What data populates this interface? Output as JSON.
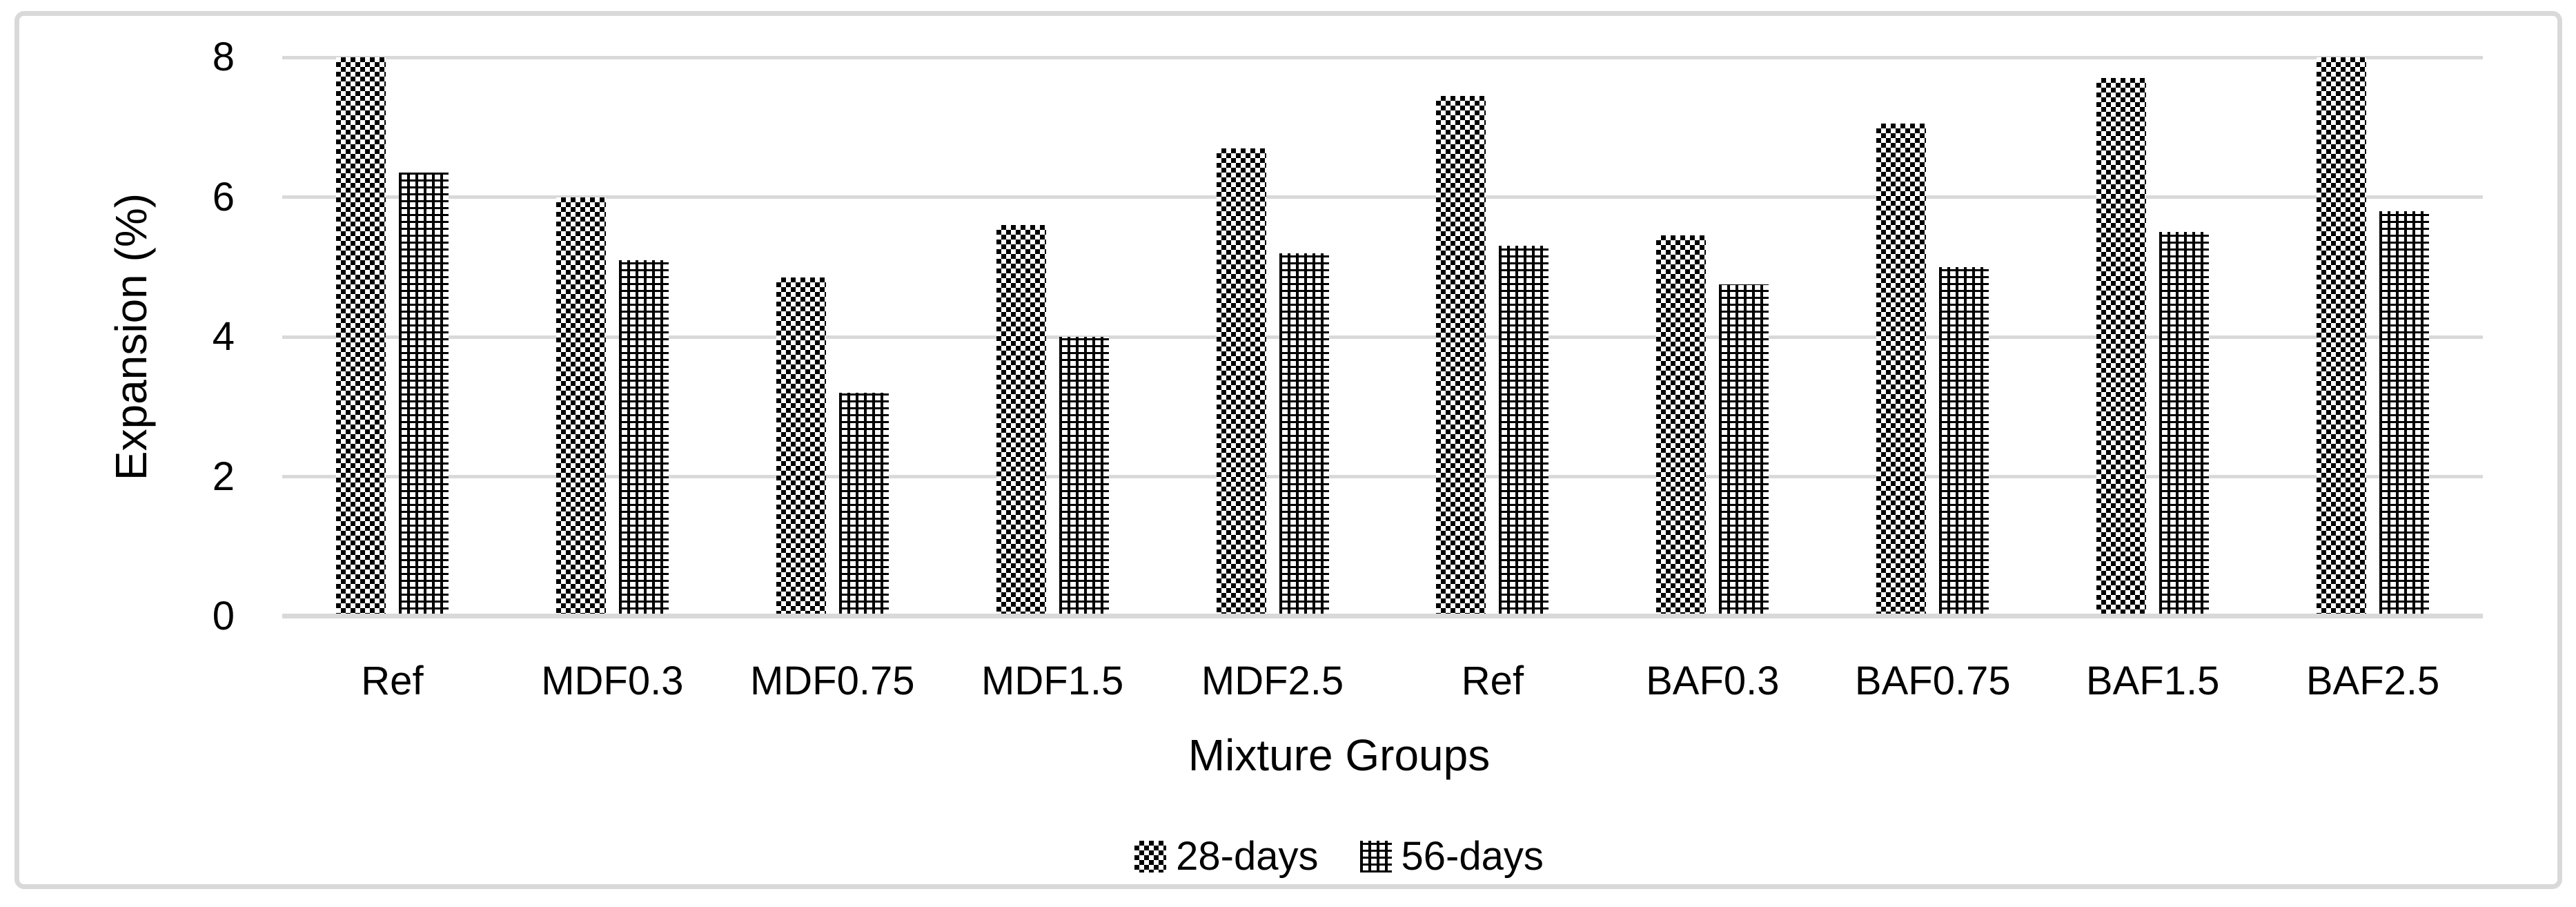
{
  "chart_data": {
    "type": "bar",
    "categories": [
      "Ref",
      "MDF0.3",
      "MDF0.75",
      "MDF1.5",
      "MDF2.5",
      "Ref",
      "BAF0.3",
      "BAF0.75",
      "BAF1.5",
      "BAF2.5"
    ],
    "series": [
      {
        "name": "28-days",
        "pattern": "checkerboard",
        "values": [
          8.0,
          6.0,
          4.85,
          5.6,
          6.7,
          7.45,
          5.45,
          7.05,
          7.7,
          8.0
        ]
      },
      {
        "name": "56-days",
        "pattern": "dot-grid",
        "values": [
          6.35,
          5.1,
          3.2,
          4.0,
          5.2,
          5.3,
          4.75,
          5.0,
          5.5,
          5.8
        ]
      }
    ],
    "title": "",
    "xlabel": "Mixture Groups",
    "ylabel": "Expansion (%)",
    "ylim": [
      0,
      8
    ],
    "yticks": [
      0,
      2,
      4,
      6,
      8
    ],
    "grid": true,
    "legend_position": "bottom-center"
  },
  "colors": {
    "background": "#ffffff",
    "border": "#d9d9d9",
    "gridline": "#d9d9d9",
    "axis_line": "#d9d9d9",
    "text": "#000000",
    "bar_fill_dark": "#000000",
    "bar_fill_light": "#ffffff"
  },
  "legend": {
    "items": [
      {
        "label": "28-days",
        "swatch": "checkerboard-pattern-swatch"
      },
      {
        "label": "56-days",
        "swatch": "dot-grid-pattern-swatch"
      }
    ]
  }
}
